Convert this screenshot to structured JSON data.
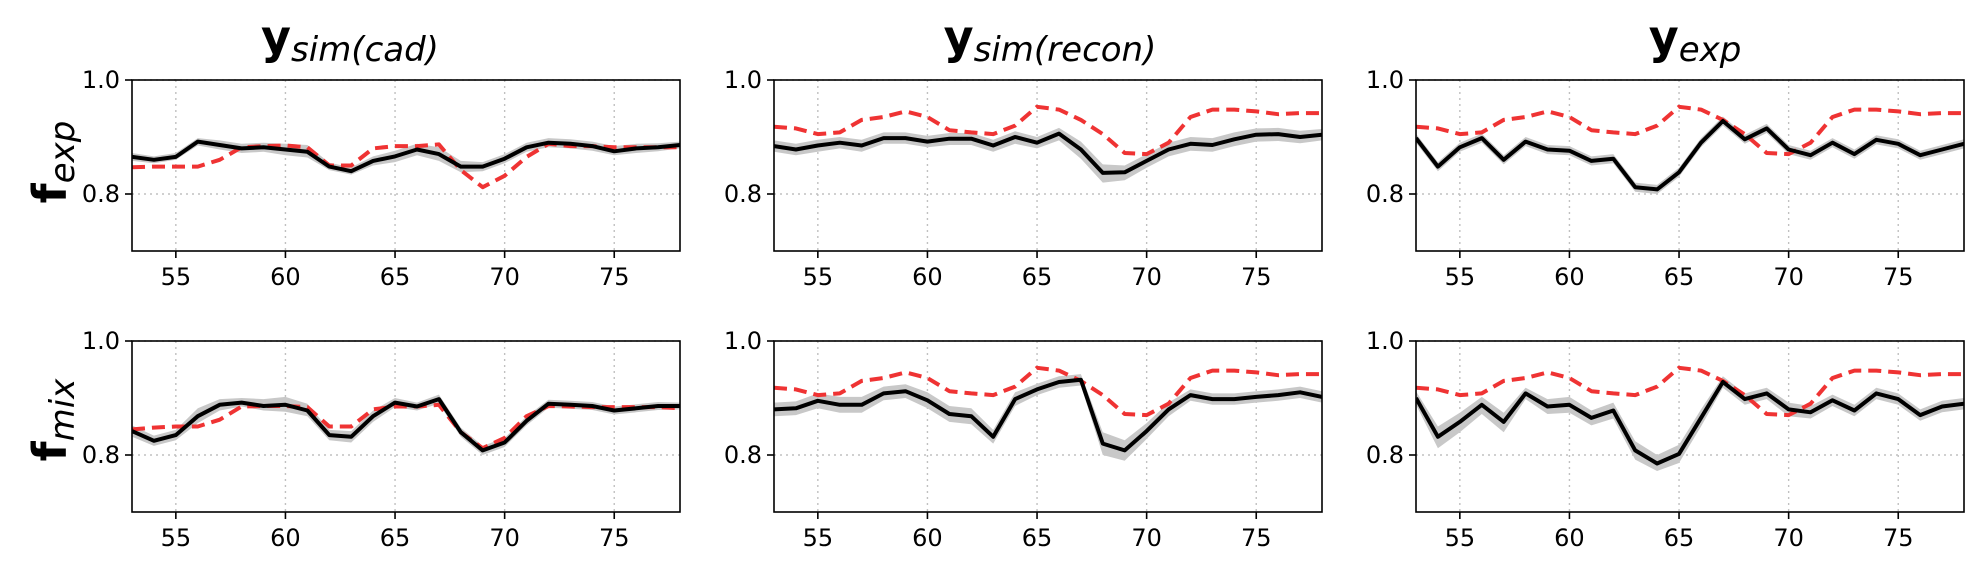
{
  "chart_data": {
    "type": "line",
    "layout": "2x3 grid of line panels",
    "column_titles": [
      {
        "main": "y",
        "sub": "sim(cad)"
      },
      {
        "main": "y",
        "sub": "sim(recon)"
      },
      {
        "main": "y",
        "sub": "exp"
      }
    ],
    "row_titles": [
      {
        "main": "f",
        "sub": "exp"
      },
      {
        "main": "f",
        "sub": "mix"
      }
    ],
    "xlim": [
      53,
      78
    ],
    "ylim": [
      0.7,
      1.0
    ],
    "xticks": [
      55,
      60,
      65,
      70,
      75
    ],
    "yticks": [
      0.8,
      1.0
    ],
    "ytick_labels": [
      "0.8",
      "1.0"
    ],
    "grid": "dotted",
    "colors": {
      "mean_line": "#000000",
      "band": "#c8c8c8",
      "reference": "#ef3333",
      "grid": "#c0c0c0"
    },
    "x": [
      53,
      54,
      55,
      56,
      57,
      58,
      59,
      60,
      61,
      62,
      63,
      64,
      65,
      66,
      67,
      68,
      69,
      70,
      71,
      72,
      73,
      74,
      75,
      76,
      77,
      78
    ],
    "panels": [
      {
        "row": 0,
        "col": 0,
        "reference": [
          0.847,
          0.848,
          0.848,
          0.848,
          0.86,
          0.882,
          0.884,
          0.885,
          0.882,
          0.85,
          0.85,
          0.88,
          0.884,
          0.884,
          0.887,
          0.842,
          0.812,
          0.832,
          0.865,
          0.888,
          0.884,
          0.884,
          0.882,
          0.882,
          0.882,
          0.882
        ],
        "mean": [
          0.865,
          0.86,
          0.865,
          0.892,
          0.886,
          0.88,
          0.882,
          0.878,
          0.874,
          0.848,
          0.84,
          0.858,
          0.866,
          0.878,
          0.87,
          0.848,
          0.848,
          0.862,
          0.882,
          0.89,
          0.888,
          0.884,
          0.875,
          0.88,
          0.882,
          0.886
        ],
        "band_low": [
          0.858,
          0.854,
          0.86,
          0.885,
          0.878,
          0.872,
          0.874,
          0.868,
          0.864,
          0.842,
          0.834,
          0.85,
          0.856,
          0.868,
          0.858,
          0.838,
          0.84,
          0.854,
          0.874,
          0.882,
          0.88,
          0.876,
          0.868,
          0.872,
          0.875,
          0.88
        ],
        "band_high": [
          0.872,
          0.866,
          0.872,
          0.898,
          0.894,
          0.888,
          0.89,
          0.888,
          0.886,
          0.855,
          0.847,
          0.866,
          0.876,
          0.888,
          0.882,
          0.858,
          0.856,
          0.87,
          0.89,
          0.898,
          0.896,
          0.892,
          0.884,
          0.888,
          0.889,
          0.892
        ]
      },
      {
        "row": 0,
        "col": 1,
        "reference": [
          0.918,
          0.915,
          0.905,
          0.908,
          0.93,
          0.935,
          0.945,
          0.935,
          0.912,
          0.908,
          0.905,
          0.92,
          0.953,
          0.948,
          0.93,
          0.905,
          0.872,
          0.87,
          0.89,
          0.935,
          0.948,
          0.948,
          0.945,
          0.94,
          0.942,
          0.942
        ],
        "mean": [
          0.884,
          0.878,
          0.885,
          0.89,
          0.885,
          0.898,
          0.898,
          0.892,
          0.897,
          0.897,
          0.885,
          0.9,
          0.89,
          0.906,
          0.878,
          0.837,
          0.838,
          0.858,
          0.878,
          0.888,
          0.886,
          0.896,
          0.904,
          0.905,
          0.9,
          0.904
        ],
        "band_low": [
          0.874,
          0.868,
          0.874,
          0.88,
          0.874,
          0.888,
          0.888,
          0.882,
          0.886,
          0.886,
          0.874,
          0.888,
          0.88,
          0.894,
          0.862,
          0.82,
          0.824,
          0.846,
          0.866,
          0.876,
          0.874,
          0.884,
          0.892,
          0.893,
          0.889,
          0.894
        ],
        "band_high": [
          0.894,
          0.888,
          0.895,
          0.9,
          0.895,
          0.908,
          0.908,
          0.902,
          0.907,
          0.907,
          0.895,
          0.91,
          0.9,
          0.916,
          0.892,
          0.852,
          0.85,
          0.87,
          0.89,
          0.9,
          0.898,
          0.908,
          0.915,
          0.916,
          0.911,
          0.914
        ]
      },
      {
        "row": 0,
        "col": 2,
        "reference": [
          0.918,
          0.915,
          0.905,
          0.908,
          0.93,
          0.935,
          0.945,
          0.935,
          0.912,
          0.908,
          0.905,
          0.92,
          0.953,
          0.948,
          0.93,
          0.905,
          0.872,
          0.87,
          0.89,
          0.935,
          0.948,
          0.948,
          0.945,
          0.94,
          0.942,
          0.942
        ],
        "mean": [
          0.898,
          0.848,
          0.882,
          0.898,
          0.86,
          0.892,
          0.878,
          0.876,
          0.858,
          0.862,
          0.812,
          0.808,
          0.838,
          0.89,
          0.928,
          0.896,
          0.915,
          0.878,
          0.868,
          0.89,
          0.87,
          0.895,
          0.888,
          0.868,
          0.878,
          0.888
        ],
        "band_low": [
          0.89,
          0.84,
          0.874,
          0.89,
          0.852,
          0.884,
          0.87,
          0.868,
          0.85,
          0.854,
          0.804,
          0.8,
          0.83,
          0.882,
          0.92,
          0.888,
          0.907,
          0.87,
          0.86,
          0.882,
          0.862,
          0.887,
          0.88,
          0.86,
          0.87,
          0.88
        ],
        "band_high": [
          0.906,
          0.856,
          0.89,
          0.906,
          0.868,
          0.9,
          0.886,
          0.884,
          0.866,
          0.87,
          0.82,
          0.816,
          0.846,
          0.898,
          0.936,
          0.904,
          0.923,
          0.886,
          0.876,
          0.898,
          0.878,
          0.903,
          0.896,
          0.876,
          0.886,
          0.896
        ]
      },
      {
        "row": 1,
        "col": 0,
        "reference": [
          0.845,
          0.848,
          0.85,
          0.85,
          0.862,
          0.885,
          0.886,
          0.886,
          0.884,
          0.85,
          0.85,
          0.88,
          0.885,
          0.885,
          0.888,
          0.84,
          0.812,
          0.83,
          0.868,
          0.886,
          0.885,
          0.884,
          0.884,
          0.884,
          0.884,
          0.882
        ],
        "mean": [
          0.842,
          0.825,
          0.835,
          0.868,
          0.888,
          0.892,
          0.886,
          0.888,
          0.878,
          0.835,
          0.832,
          0.868,
          0.892,
          0.885,
          0.898,
          0.84,
          0.808,
          0.822,
          0.86,
          0.89,
          0.888,
          0.886,
          0.878,
          0.882,
          0.886,
          0.886
        ],
        "band_low": [
          0.832,
          0.816,
          0.826,
          0.856,
          0.878,
          0.885,
          0.878,
          0.876,
          0.868,
          0.826,
          0.822,
          0.858,
          0.884,
          0.878,
          0.89,
          0.832,
          0.8,
          0.814,
          0.852,
          0.883,
          0.881,
          0.879,
          0.871,
          0.875,
          0.879,
          0.88
        ],
        "band_high": [
          0.852,
          0.834,
          0.844,
          0.882,
          0.898,
          0.9,
          0.898,
          0.902,
          0.89,
          0.844,
          0.842,
          0.878,
          0.9,
          0.892,
          0.906,
          0.848,
          0.816,
          0.83,
          0.868,
          0.897,
          0.895,
          0.893,
          0.885,
          0.889,
          0.893,
          0.892
        ]
      },
      {
        "row": 1,
        "col": 1,
        "reference": [
          0.918,
          0.915,
          0.905,
          0.908,
          0.93,
          0.935,
          0.945,
          0.935,
          0.912,
          0.908,
          0.905,
          0.92,
          0.953,
          0.948,
          0.93,
          0.905,
          0.872,
          0.87,
          0.89,
          0.935,
          0.948,
          0.948,
          0.945,
          0.94,
          0.942,
          0.942
        ],
        "mean": [
          0.88,
          0.882,
          0.895,
          0.888,
          0.888,
          0.908,
          0.912,
          0.896,
          0.872,
          0.868,
          0.832,
          0.898,
          0.915,
          0.928,
          0.932,
          0.82,
          0.808,
          0.842,
          0.88,
          0.905,
          0.898,
          0.898,
          0.902,
          0.905,
          0.91,
          0.902
        ],
        "band_low": [
          0.868,
          0.87,
          0.882,
          0.874,
          0.874,
          0.896,
          0.9,
          0.882,
          0.858,
          0.854,
          0.82,
          0.886,
          0.905,
          0.918,
          0.922,
          0.8,
          0.79,
          0.828,
          0.868,
          0.895,
          0.888,
          0.888,
          0.892,
          0.895,
          0.9,
          0.892
        ],
        "band_high": [
          0.892,
          0.894,
          0.908,
          0.902,
          0.902,
          0.92,
          0.924,
          0.91,
          0.886,
          0.882,
          0.844,
          0.91,
          0.925,
          0.938,
          0.942,
          0.84,
          0.826,
          0.856,
          0.892,
          0.915,
          0.908,
          0.908,
          0.912,
          0.915,
          0.92,
          0.912
        ]
      },
      {
        "row": 1,
        "col": 2,
        "reference": [
          0.918,
          0.915,
          0.905,
          0.908,
          0.93,
          0.935,
          0.945,
          0.935,
          0.912,
          0.908,
          0.905,
          0.92,
          0.953,
          0.948,
          0.93,
          0.905,
          0.872,
          0.87,
          0.89,
          0.935,
          0.948,
          0.948,
          0.945,
          0.94,
          0.942,
          0.942
        ],
        "mean": [
          0.9,
          0.832,
          0.858,
          0.888,
          0.858,
          0.908,
          0.885,
          0.888,
          0.865,
          0.878,
          0.808,
          0.785,
          0.802,
          0.865,
          0.928,
          0.898,
          0.908,
          0.88,
          0.875,
          0.896,
          0.878,
          0.908,
          0.898,
          0.87,
          0.885,
          0.89
        ],
        "band_low": [
          0.888,
          0.812,
          0.84,
          0.872,
          0.84,
          0.898,
          0.872,
          0.874,
          0.852,
          0.864,
          0.792,
          0.772,
          0.786,
          0.85,
          0.918,
          0.888,
          0.898,
          0.868,
          0.864,
          0.886,
          0.868,
          0.898,
          0.888,
          0.86,
          0.875,
          0.88
        ],
        "band_high": [
          0.912,
          0.85,
          0.874,
          0.902,
          0.874,
          0.918,
          0.898,
          0.902,
          0.878,
          0.892,
          0.824,
          0.8,
          0.818,
          0.88,
          0.938,
          0.908,
          0.918,
          0.892,
          0.886,
          0.906,
          0.888,
          0.918,
          0.908,
          0.88,
          0.895,
          0.9
        ]
      }
    ]
  }
}
